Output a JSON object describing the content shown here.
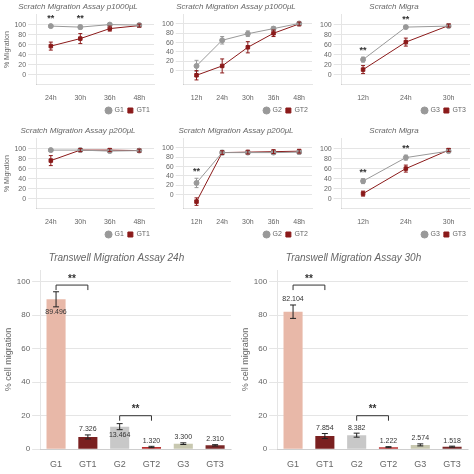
{
  "chart_data": [
    {
      "type": "line",
      "title": "Scratch Migration Assay p1000μL",
      "categories": [
        "24h",
        "30h",
        "36h",
        "48h"
      ],
      "series": [
        {
          "name": "G1",
          "color": "#999999",
          "marker": "circle",
          "values": [
            97,
            95,
            100,
            99
          ],
          "errors": [
            3,
            4,
            2,
            2
          ]
        },
        {
          "name": "GT1",
          "color": "#8b1a1a",
          "marker": "square",
          "values": [
            57,
            72,
            92,
            98
          ],
          "errors": [
            8,
            10,
            5,
            3
          ]
        }
      ],
      "ylabel": "% Migration",
      "ylim": [
        -20,
        120
      ],
      "yticks": [
        0,
        20,
        40,
        60,
        80,
        100
      ],
      "grid": true,
      "legend": "lower right",
      "annotations": [
        {
          "text": "**",
          "x": "24h"
        },
        {
          "text": "**",
          "x": "30h"
        }
      ]
    },
    {
      "type": "line",
      "title": "Scratch Migration Assay p1000μL",
      "categories": [
        "12h",
        "24h",
        "30h",
        "36h",
        "48h"
      ],
      "series": [
        {
          "name": "G2",
          "color": "#999999",
          "marker": "circle",
          "values": [
            10,
            65,
            79,
            90,
            101
          ],
          "errors": [
            12,
            8,
            6,
            4,
            3
          ]
        },
        {
          "name": "GT2",
          "color": "#8b1a1a",
          "marker": "square",
          "values": [
            -10,
            10,
            50,
            80,
            100
          ],
          "errors": [
            10,
            15,
            12,
            7,
            4
          ]
        }
      ],
      "ylim": [
        -30,
        120
      ],
      "yticks": [
        0,
        20,
        40,
        60,
        80,
        100
      ],
      "grid": true,
      "legend": "lower right",
      "annotations": []
    },
    {
      "type": "line",
      "title": "Scratch Migra",
      "categories": [
        "12h",
        "24h",
        "30h"
      ],
      "series": [
        {
          "name": "G3",
          "color": "#999999",
          "marker": "circle",
          "values": [
            30,
            95,
            97
          ],
          "errors": [
            5,
            3,
            2
          ]
        },
        {
          "name": "GT3",
          "color": "#8b1a1a",
          "marker": "square",
          "values": [
            10,
            65,
            98
          ],
          "errors": [
            8,
            8,
            3
          ]
        }
      ],
      "ylim": [
        -20,
        120
      ],
      "yticks": [
        0,
        20,
        40,
        60,
        80,
        100
      ],
      "grid": true,
      "legend": "lower right",
      "annotations": [
        {
          "text": "**",
          "x": "12h"
        },
        {
          "text": "**",
          "x": "24h"
        }
      ]
    },
    {
      "type": "line",
      "title": "Scratch Migration Assay p200μL",
      "categories": [
        "24h",
        "30h",
        "36h",
        "48h"
      ],
      "series": [
        {
          "name": "G1",
          "color": "#999999",
          "marker": "circle",
          "values": [
            97,
            97,
            95,
            96
          ],
          "errors": [
            3,
            3,
            3,
            2
          ]
        },
        {
          "name": "GT1",
          "color": "#8b1a1a",
          "marker": "square",
          "values": [
            76,
            97,
            97,
            96
          ],
          "errors": [
            10,
            3,
            3,
            3
          ]
        }
      ],
      "ylabel": "% Migration",
      "ylim": [
        -20,
        120
      ],
      "yticks": [
        0,
        20,
        40,
        60,
        80,
        100
      ],
      "grid": true,
      "legend": "lower right",
      "annotations": []
    },
    {
      "type": "line",
      "title": "Scratch Migration Assay p200μL",
      "categories": [
        "12h",
        "24h",
        "30h",
        "36h",
        "48h"
      ],
      "series": [
        {
          "name": "G2",
          "color": "#999999",
          "marker": "circle",
          "values": [
            25,
            90,
            90,
            90,
            91
          ],
          "errors": [
            10,
            5,
            4,
            4,
            4
          ]
        },
        {
          "name": "GT2",
          "color": "#8b1a1a",
          "marker": "square",
          "values": [
            -15,
            90,
            91,
            92,
            93
          ],
          "errors": [
            8,
            4,
            4,
            4,
            4
          ]
        }
      ],
      "ylim": [
        -30,
        120
      ],
      "yticks": [
        0,
        20,
        40,
        60,
        80,
        100
      ],
      "grid": true,
      "legend": "lower right",
      "annotations": [
        {
          "text": "**",
          "x": "12h"
        }
      ]
    },
    {
      "type": "line",
      "title": "Scratch Migra",
      "categories": [
        "12h",
        "24h",
        "30h"
      ],
      "series": [
        {
          "name": "G3",
          "color": "#999999",
          "marker": "circle",
          "values": [
            35,
            82,
            95
          ],
          "errors": [
            5,
            5,
            3
          ]
        },
        {
          "name": "GT3",
          "color": "#8b1a1a",
          "marker": "square",
          "values": [
            10,
            60,
            97
          ],
          "errors": [
            5,
            7,
            3
          ]
        }
      ],
      "ylim": [
        -20,
        120
      ],
      "yticks": [
        0,
        20,
        40,
        60,
        80,
        100
      ],
      "grid": true,
      "legend": "lower right",
      "annotations": [
        {
          "text": "**",
          "x": "12h"
        },
        {
          "text": "**",
          "x": "24h"
        }
      ]
    },
    {
      "type": "bar",
      "title": "Transwell Migration Assay 24h",
      "categories": [
        "G1",
        "GT1",
        "G2",
        "GT2",
        "G3",
        "GT3"
      ],
      "values": [
        89.496,
        7.326,
        13.464,
        1.32,
        3.3,
        2.31
      ],
      "errors": [
        4.5,
        1.2,
        1.8,
        0.4,
        0.5,
        0.4
      ],
      "value_labels": [
        "89.496",
        "7.326",
        "13.464",
        "1.320",
        "3.300",
        "2.310"
      ],
      "data_labels": true,
      "colors": [
        "#e8b8a8",
        "#7a2020",
        "#c8c8c8",
        "#b83030",
        "#c8c8b0",
        "#7a2828"
      ],
      "ylabel": "% cell migration",
      "ylim": [
        0,
        107
      ],
      "yticks": [
        0,
        20,
        40,
        60,
        80,
        100
      ],
      "grid": true,
      "annotations": [
        {
          "text": "**",
          "from": "G1",
          "to": "GT1",
          "y": 98
        },
        {
          "text": "**",
          "from": "G2",
          "to": "GT2",
          "y": 20
        }
      ]
    },
    {
      "type": "bar",
      "title": "Transwell Migration Assay 30h",
      "categories": [
        "G1",
        "GT1",
        "G2",
        "GT2",
        "G3",
        "GT3"
      ],
      "values": [
        82.104,
        7.854,
        8.382,
        1.222,
        2.574,
        1.518
      ],
      "errors": [
        4.0,
        1.5,
        1.2,
        0.3,
        0.6,
        0.3
      ],
      "value_labels": [
        "82.104",
        "7.854",
        "8.382",
        "1.222",
        "2.574",
        "1.518"
      ],
      "data_labels": true,
      "colors": [
        "#e8b8a8",
        "#7a2020",
        "#c8c8c8",
        "#b83030",
        "#c8c8b0",
        "#7a2828"
      ],
      "ylabel": "% cell migration",
      "ylim": [
        0,
        107
      ],
      "yticks": [
        0,
        20,
        40,
        60,
        80,
        100
      ],
      "grid": true,
      "annotations": [
        {
          "text": "**",
          "from": "G1",
          "to": "GT1",
          "y": 98
        },
        {
          "text": "**",
          "from": "G2",
          "to": "GT2",
          "y": 20
        }
      ]
    }
  ]
}
